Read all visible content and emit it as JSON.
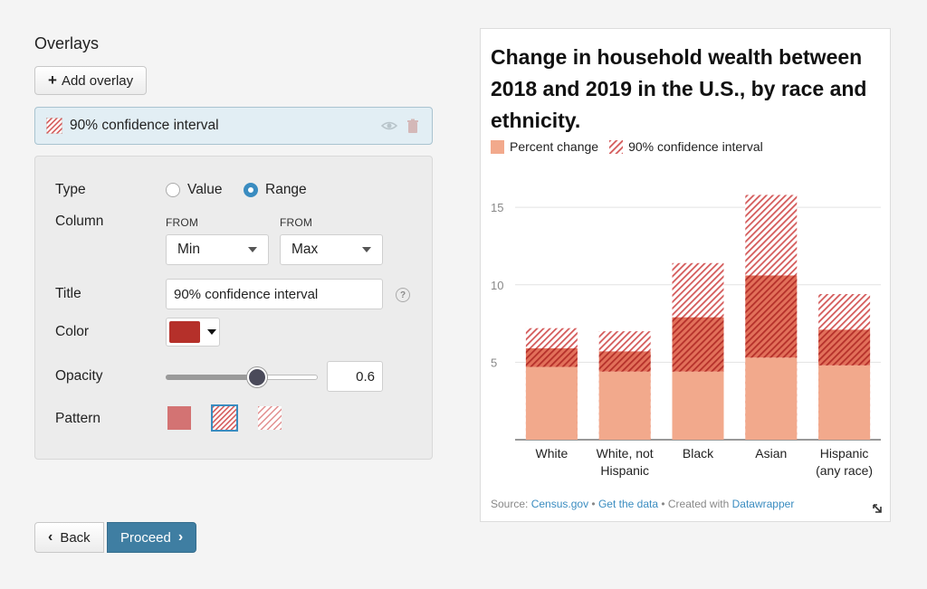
{
  "overlays": {
    "heading": "Overlays",
    "add_label": "Add overlay",
    "item_name": "90% confidence interval"
  },
  "settings": {
    "type_label": "Type",
    "type_options": [
      "Value",
      "Range"
    ],
    "type_selected": "Range",
    "column_label": "Column",
    "from_label_1": "FROM",
    "from_label_2": "FROM",
    "from_value": "Min",
    "to_value": "Max",
    "title_label": "Title",
    "title_value": "90% confidence interval",
    "help": "?",
    "color_label": "Color",
    "color_value": "#b5302a",
    "opacity_label": "Opacity",
    "opacity_value": "0.6",
    "pattern_label": "Pattern"
  },
  "nav": {
    "back": "Back",
    "proceed": "Proceed"
  },
  "chart": {
    "title": "Change in household wealth between 2018 and 2019 in the U.S., by race and ethnicity.",
    "legend_percent": "Percent change",
    "legend_ci": "90% confidence interval",
    "footer_source_prefix": "Source:",
    "footer_source": "Census.gov",
    "footer_sep1": "•",
    "footer_data": "Get the data",
    "footer_sep2": "• Created with",
    "footer_tool": "Datawrapper"
  },
  "chart_data": {
    "type": "bar",
    "categories": [
      "White",
      "White, not Hispanic",
      "Black",
      "Asian",
      "Hispanic (any race)"
    ],
    "category_lines": [
      [
        "White"
      ],
      [
        "White, not",
        "Hispanic"
      ],
      [
        "Black"
      ],
      [
        "Asian"
      ],
      [
        "Hispanic",
        "(any race)"
      ]
    ],
    "values": [
      4.7,
      4.4,
      4.4,
      5.3,
      4.8
    ],
    "range_min": [
      5.9,
      5.7,
      7.9,
      10.6,
      7.1
    ],
    "range_max": [
      7.2,
      7.0,
      11.4,
      15.8,
      9.4
    ],
    "yticks": [
      5,
      10,
      15
    ],
    "ylim": [
      0,
      16
    ],
    "bar_color": "#f2a98c",
    "ci_color": "#b5302a",
    "ci_light": "#e49a9a"
  }
}
